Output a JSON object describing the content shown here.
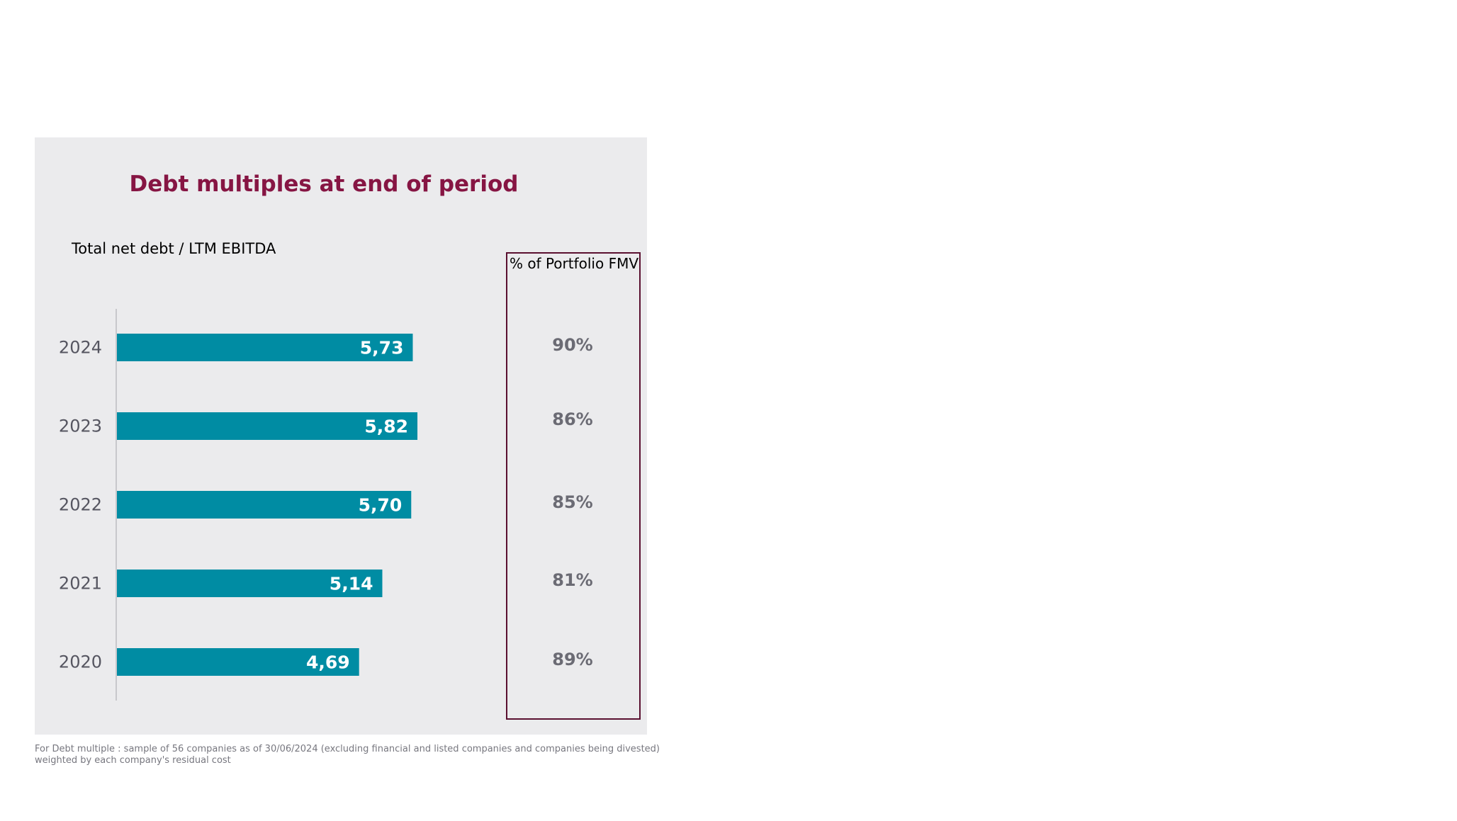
{
  "chart_data": {
    "type": "bar",
    "orientation": "horizontal",
    "title": "Debt multiples at end of period",
    "ylabel": "Total net debt / LTM EBITDA",
    "xlabel": "",
    "categories": [
      "2024",
      "2023",
      "2022",
      "2021",
      "2020"
    ],
    "values": [
      5.73,
      5.82,
      5.7,
      5.14,
      4.69
    ],
    "value_labels": [
      "5,73",
      "5,82",
      "5,70",
      "5,14",
      "4,69"
    ],
    "xlim": [
      0,
      10.5
    ],
    "grid": false,
    "bar_color": "#008ca3",
    "side_table": {
      "header": "% of Portfolio FMV",
      "values": [
        "90%",
        "86%",
        "85%",
        "81%",
        "89%"
      ]
    }
  },
  "footnote": {
    "line1": "For Debt multiple : sample of 56 companies as of 30/06/2024 (excluding financial and listed companies and companies being divested)",
    "line2": "weighted by each company's residual cost"
  }
}
